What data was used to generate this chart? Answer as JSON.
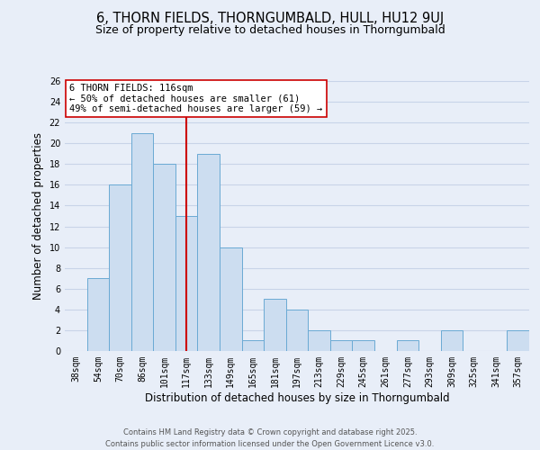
{
  "title": "6, THORN FIELDS, THORNGUMBALD, HULL, HU12 9UJ",
  "subtitle": "Size of property relative to detached houses in Thorngumbald",
  "xlabel": "Distribution of detached houses by size in Thorngumbald",
  "ylabel": "Number of detached properties",
  "bar_labels": [
    "38sqm",
    "54sqm",
    "70sqm",
    "86sqm",
    "101sqm",
    "117sqm",
    "133sqm",
    "149sqm",
    "165sqm",
    "181sqm",
    "197sqm",
    "213sqm",
    "229sqm",
    "245sqm",
    "261sqm",
    "277sqm",
    "293sqm",
    "309sqm",
    "325sqm",
    "341sqm",
    "357sqm"
  ],
  "bar_heights": [
    0,
    7,
    16,
    21,
    18,
    13,
    19,
    10,
    1,
    5,
    4,
    2,
    1,
    1,
    0,
    1,
    0,
    2,
    0,
    0,
    2
  ],
  "bar_color": "#ccddf0",
  "bar_edge_color": "#6aaad4",
  "ylim": [
    0,
    26
  ],
  "yticks": [
    0,
    2,
    4,
    6,
    8,
    10,
    12,
    14,
    16,
    18,
    20,
    22,
    24,
    26
  ],
  "vline_index": 5,
  "vline_color": "#cc0000",
  "annotation_title": "6 THORN FIELDS: 116sqm",
  "annotation_line2": "← 50% of detached houses are smaller (61)",
  "annotation_line3": "49% of semi-detached houses are larger (59) →",
  "annotation_box_edge": "#cc0000",
  "annotation_box_face": "#ffffff",
  "grid_color": "#c8d4e8",
  "bg_color": "#e8eef8",
  "footer1": "Contains HM Land Registry data © Crown copyright and database right 2025.",
  "footer2": "Contains public sector information licensed under the Open Government Licence v3.0.",
  "title_fontsize": 10.5,
  "subtitle_fontsize": 9,
  "tick_fontsize": 7,
  "ylabel_fontsize": 8.5,
  "xlabel_fontsize": 8.5,
  "annotation_fontsize": 7.5,
  "footer_fontsize": 6
}
